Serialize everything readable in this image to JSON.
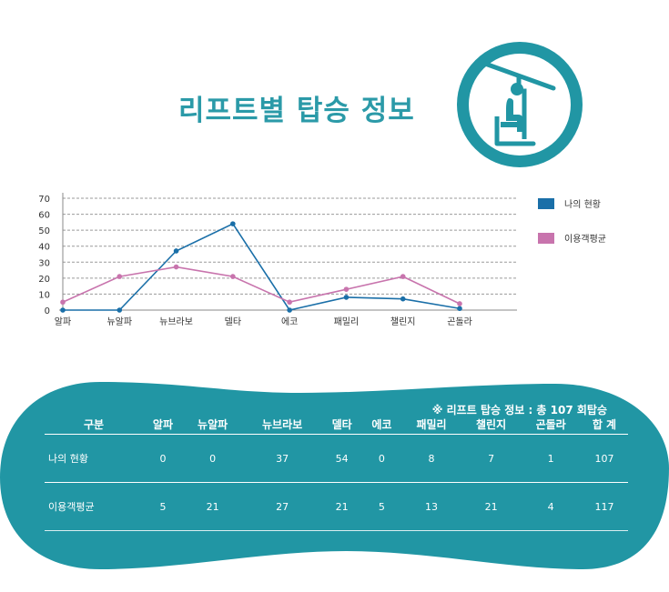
{
  "title": "리프트별 탑승 정보",
  "colors": {
    "accent": "#2196a4",
    "series_mine": "#1a6fa8",
    "series_avg": "#c874ad",
    "panel": "#2196a4"
  },
  "chart_data": {
    "type": "line",
    "x": [
      "알파",
      "뉴알파",
      "뉴브라보",
      "델타",
      "에코",
      "패밀리",
      "챌린지",
      "곤돌라"
    ],
    "ylim": [
      0,
      70
    ],
    "yticks": [
      0,
      10,
      20,
      30,
      40,
      50,
      60,
      70
    ],
    "grid": true,
    "legend": "right",
    "series": [
      {
        "name": "나의 현황",
        "color": "#1a6fa8",
        "values": [
          0,
          0,
          37,
          54,
          0,
          8,
          7,
          1
        ]
      },
      {
        "name": "이용객평균",
        "color": "#c874ad",
        "values": [
          5,
          21,
          27,
          21,
          5,
          13,
          21,
          4
        ]
      }
    ]
  },
  "table": {
    "note": "※ 리프트 탑승 정보 : 총 107 회탑승",
    "headers": [
      "구분",
      "알파",
      "뉴알파",
      "뉴브라보",
      "델타",
      "에코",
      "패밀리",
      "챌린지",
      "곤돌라",
      "합 계"
    ],
    "rows": [
      {
        "label": "나의 현황",
        "cells": [
          "0",
          "0",
          "37",
          "54",
          "0",
          "8",
          "7",
          "1",
          "107"
        ]
      },
      {
        "label": "이용객평균",
        "cells": [
          "5",
          "21",
          "27",
          "21",
          "5",
          "13",
          "21",
          "4",
          "117"
        ]
      }
    ]
  }
}
